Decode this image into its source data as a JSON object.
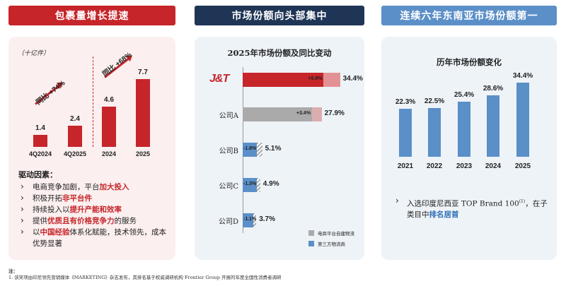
{
  "headers": {
    "left": "包裹量增长提速",
    "middle": "市场份额向头部集中",
    "right": "连续六年东南亚市场份额第一"
  },
  "colors": {
    "red": "#c6252a",
    "navy": "#1f3556",
    "blue": "#5b8fc7",
    "gray": "#aaaaaa"
  },
  "left_panel": {
    "unit": "（十亿件）",
    "drivers_title": "驱动因素：",
    "drivers": [
      {
        "plain": "电商竞争加剧，平台",
        "hl": "加大投入",
        "after": ""
      },
      {
        "plain": "积极开拓",
        "hl": "非平台件",
        "after": ""
      },
      {
        "plain": "持续投入以",
        "hl": "提升产能和效率",
        "after": ""
      },
      {
        "plain": "提供",
        "hl": "优质且有价格竞争力",
        "after": "的服务"
      },
      {
        "plain": "以",
        "hl": "中国经验",
        "after": "体系化赋能，技术领先，成本优势显著"
      }
    ]
  },
  "middle_panel": {
    "logo_text": "J&T",
    "legend": [
      "电商平台自建物流",
      "第三方物流商"
    ]
  },
  "right_panel": {
    "note_before": "入选印度尼西亚 TOP Brand 100",
    "note_sup": "(1)",
    "note_mid": "，在子类目中",
    "note_hl": "排名居首"
  },
  "footer": {
    "label": "注：",
    "line1": "1. 该奖项由印尼领先营销媒体《MARKETING》杂志发布，其排名基于权威调研机构 Frontier Group 开展的年度全国性消费者调研"
  },
  "chart_data": [
    {
      "type": "bar",
      "title": "",
      "categories": [
        "4Q2024",
        "4Q2025",
        "2024",
        "2025"
      ],
      "values": [
        1.4,
        2.4,
        4.6,
        7.7
      ],
      "value_labels": [
        "1.4",
        "2.4",
        "4.6",
        "7.7"
      ],
      "unit": "十亿件",
      "annotations": [
        "同比 +74%",
        "同比 +68%"
      ],
      "ylim": [
        0,
        8
      ]
    },
    {
      "type": "bar",
      "orientation": "horizontal",
      "title": "2025年市场份额及同比变动",
      "categories": [
        "J&T",
        "公司A",
        "公司B",
        "公司C",
        "公司D"
      ],
      "values": [
        34.4,
        27.9,
        5.1,
        4.9,
        3.7
      ],
      "value_labels": [
        "34.4%",
        "27.9%",
        "5.1%",
        "4.9%",
        "3.7%"
      ],
      "changes": [
        5.8,
        3.4,
        -1.8,
        -1.3,
        -1.1
      ],
      "change_labels": [
        "+5.8%",
        "+3.4%",
        "-1.8%",
        "-1.3%",
        "-1.1%"
      ],
      "series_type": [
        "self",
        "platform",
        "third",
        "third",
        "third"
      ],
      "xlim": [
        0,
        40
      ]
    },
    {
      "type": "bar",
      "title": "历年市场份额变化",
      "categories": [
        "2021",
        "2022",
        "2023",
        "2024",
        "2025"
      ],
      "values": [
        22.3,
        22.5,
        25.4,
        28.6,
        34.4
      ],
      "value_labels": [
        "22.3%",
        "22.5%",
        "25.4%",
        "28.6%",
        "34.4%"
      ],
      "ylim": [
        0,
        36
      ]
    }
  ]
}
